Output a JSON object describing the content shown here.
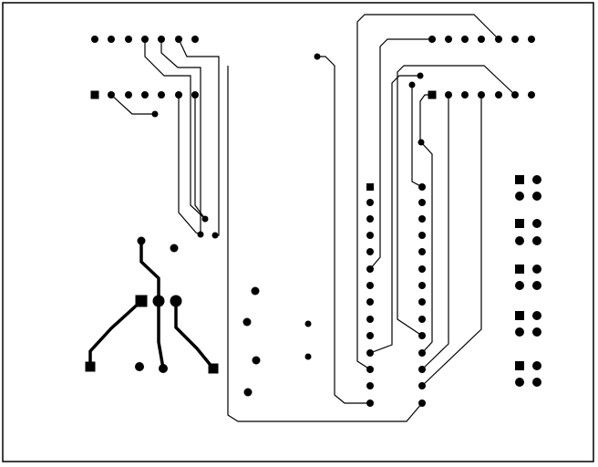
{
  "board": {
    "ink_color": "#000000",
    "background_color": "#ffffff",
    "has_text": false,
    "components": [
      "header-top-left-row-1",
      "header-top-left-row-2",
      "header-top-right-row-1",
      "header-top-right-row-2",
      "dip-ic-28",
      "two-pin-headers-x5",
      "transistor-three-pin",
      "loose-vias-and-pads"
    ]
  }
}
